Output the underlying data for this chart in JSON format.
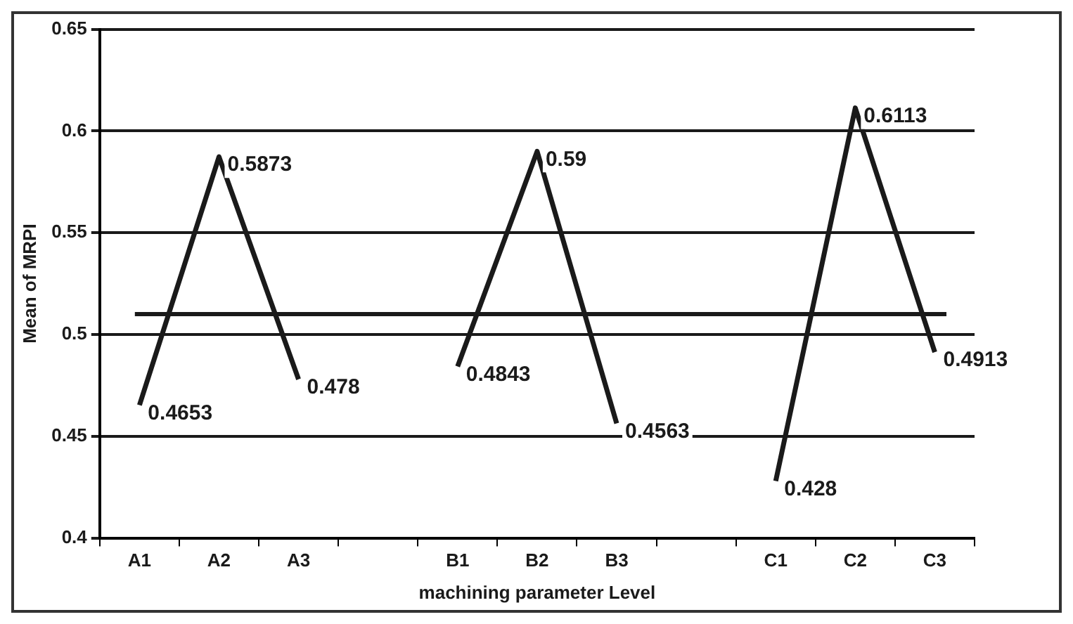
{
  "chart_data": {
    "type": "line",
    "xlabel": "machining parameter Level",
    "ylabel": "Mean of MRPI",
    "categories": [
      "A1",
      "A2",
      "A3",
      null,
      "B1",
      "B2",
      "B3",
      null,
      "C1",
      "C2",
      "C3"
    ],
    "series": [
      {
        "color": "#1a1a1a",
        "values": [
          0.4653,
          0.5873,
          0.478,
          null,
          null,
          null,
          null,
          null,
          null,
          null,
          null
        ]
      },
      {
        "color": "#1a1a1a",
        "values": [
          null,
          null,
          null,
          null,
          0.4843,
          0.59,
          0.4563,
          null,
          null,
          null,
          null
        ]
      },
      {
        "color": "#1a1a1a",
        "values": [
          null,
          null,
          null,
          null,
          null,
          null,
          null,
          null,
          0.428,
          0.6113,
          0.4913
        ]
      }
    ],
    "ylim": [
      0.4,
      0.65
    ],
    "yticks": [
      {
        "value": 0.4,
        "label": "0.4"
      },
      {
        "value": 0.45,
        "label": "0.45"
      },
      {
        "value": 0.5,
        "label": "0.5"
      },
      {
        "value": 0.55,
        "label": "0.55"
      },
      {
        "value": 0.6,
        "label": "0.6"
      },
      {
        "value": 0.65,
        "label": "0.65"
      }
    ],
    "ref_lines": [
      {
        "axis": "y",
        "value": 0.51,
        "color": "#1a1a1a"
      }
    ],
    "grid": "y",
    "legend": false,
    "marker": "none",
    "line_style": "solid",
    "data_labels": true
  }
}
